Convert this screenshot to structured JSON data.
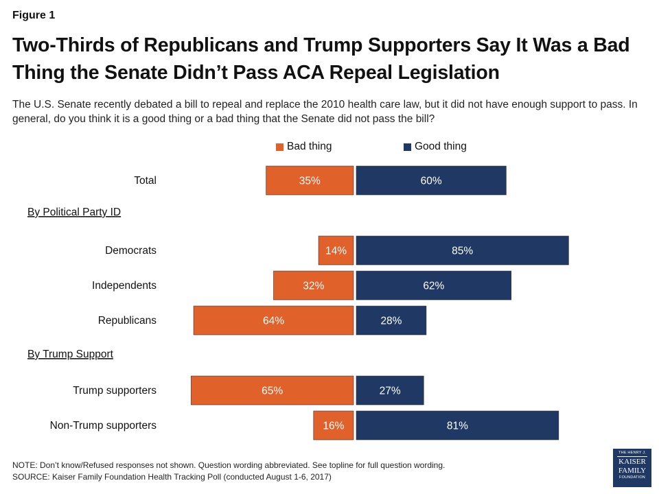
{
  "figure_label": "Figure 1",
  "title": "Two-Thirds of Republicans and Trump Supporters Say It Was a Bad Thing the Senate Didn’t Pass ACA Repeal Legislation",
  "subtitle": "The U.S. Senate recently debated a bill to repeal and replace the 2010 health care law, but it did not have enough support to pass. In general, do you think it is a good thing or a bad thing that the Senate did not pass the bill?",
  "chart_data": {
    "type": "bar",
    "orientation": "horizontal-diverging",
    "title": "",
    "series": [
      {
        "name": "Bad thing",
        "color": "#e0612a",
        "values": [
          35,
          14,
          32,
          64,
          65,
          16
        ]
      },
      {
        "name": "Good thing",
        "color": "#1f3864",
        "values": [
          60,
          85,
          62,
          28,
          27,
          81
        ]
      }
    ],
    "categories": [
      "Total",
      "Democrats",
      "Independents",
      "Republicans",
      "Trump supporters",
      "Non-Trump supporters"
    ],
    "groups": [
      {
        "label": "By Political Party ID",
        "before_category": 1
      },
      {
        "label": "By Trump Support",
        "before_category": 4
      }
    ],
    "value_suffix": "%",
    "legend_position": "top",
    "grid": false
  },
  "notes": {
    "note": "NOTE: Don’t know/Refused responses not shown. Question wording abbreviated. See topline for full question wording.",
    "source": "SOURCE: Kaiser Family Foundation Health Tracking Poll (conducted August 1-6, 2017)"
  },
  "logo": {
    "line1": "THE HENRY J.",
    "line2": "KAISER",
    "line3": "FAMILY",
    "line4": "FOUNDATION"
  }
}
